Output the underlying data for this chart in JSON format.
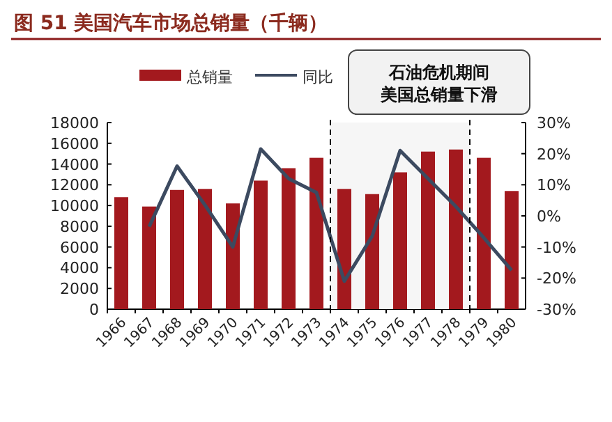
{
  "chart_data": {
    "type": "bar",
    "title": "图 51  美国汽车市场总销量（千辆）",
    "categories": [
      "1966",
      "1967",
      "1968",
      "1969",
      "1970",
      "1971",
      "1972",
      "1973",
      "1974",
      "1975",
      "1976",
      "1977",
      "1978",
      "1979",
      "1980"
    ],
    "series": [
      {
        "name": "总销量",
        "color": "#a3191e",
        "values": [
          10800,
          9900,
          11500,
          11600,
          10200,
          12400,
          13600,
          14600,
          11600,
          11100,
          13200,
          15200,
          15400,
          14600,
          11400
        ]
      },
      {
        "name": "同比",
        "type": "line",
        "axis": "y2",
        "color": "#3c4a60",
        "values": [
          null,
          -3.5,
          16,
          3.5,
          -10,
          21.5,
          12,
          7.5,
          -21,
          -6.5,
          21,
          12,
          3,
          -7,
          -17.5
        ]
      }
    ],
    "ylim": [
      0,
      18000
    ],
    "yticks": [
      0,
      2000,
      4000,
      6000,
      8000,
      10000,
      12000,
      14000,
      16000,
      18000
    ],
    "y2lim": [
      -30,
      30
    ],
    "y2ticks": [
      {
        "value": -30,
        "label": "-30%"
      },
      {
        "value": -20,
        "label": "-20%"
      },
      {
        "value": -10,
        "label": "-10%"
      },
      {
        "value": 0,
        "label": "0%"
      },
      {
        "value": 10,
        "label": "10%"
      },
      {
        "value": 20,
        "label": "20%"
      },
      {
        "value": 30,
        "label": "30%"
      }
    ],
    "bands": [
      {
        "axis": "x",
        "from": "1974",
        "to": "1978",
        "label": "石油危机期间美国总销量下滑",
        "color": "#f6f6f6"
      }
    ],
    "legend": "top",
    "grid": false
  }
}
